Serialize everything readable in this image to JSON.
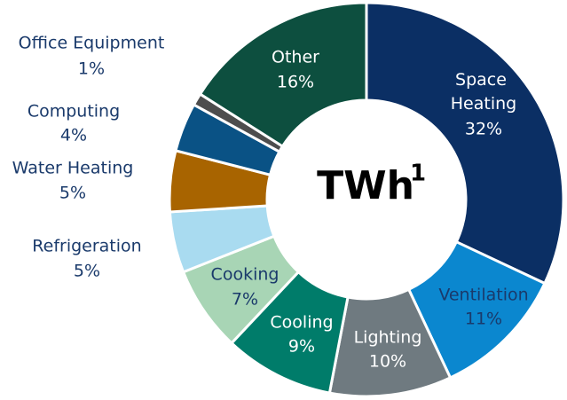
{
  "chart_data": {
    "type": "donut",
    "center_label": "TWh",
    "center_label_sup": "1",
    "categories": [
      "Space Heating",
      "Ventilation",
      "Lighting",
      "Cooling",
      "Cooking",
      "Refrigeration",
      "Water Heating",
      "Computing",
      "Office Equipment",
      "Other"
    ],
    "values": [
      32,
      11,
      10,
      9,
      7,
      5,
      5,
      4,
      1,
      16
    ],
    "value_labels": [
      "32%",
      "11%",
      "10%",
      "9%",
      "7%",
      "5%",
      "5%",
      "4%",
      "1%",
      "16%"
    ],
    "colors": [
      "#0b2f64",
      "#0b87cf",
      "#6f7a80",
      "#007c6a",
      "#a8d5b5",
      "#a9dbf0",
      "#a86400",
      "#0a5285",
      "#4d4d4d",
      "#0d4f3f"
    ]
  }
}
